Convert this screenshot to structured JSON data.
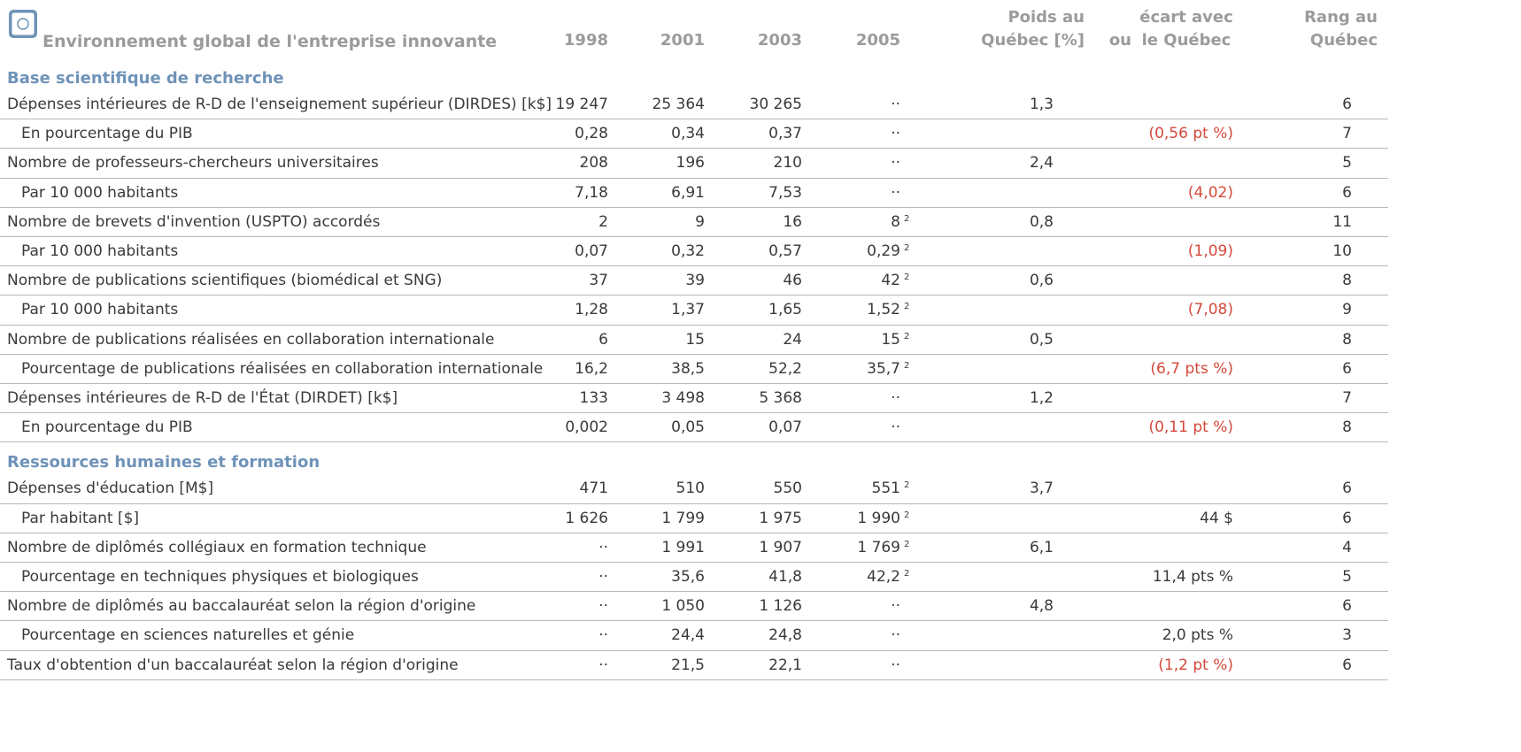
{
  "header": {
    "title": "Environnement global de l'entreprise innovante",
    "columns": [
      "1998",
      "2001",
      "2003",
      "2005",
      "Poids au\nQuébec [%]",
      "ou",
      "écart avec\nle Québec",
      "Rang au\nQuébec"
    ]
  },
  "colors": {
    "header": "#9b9b9b",
    "section": "#6f93b8",
    "text": "#3a3a3a",
    "negative": "#d4493a",
    "rule": "#b8b8b8"
  },
  "sections": [
    {
      "title": "Base scientifique de recherche",
      "rows": [
        {
          "label": "Dépenses intérieures de R-D de l'enseignement supérieur (DIRDES) [k$]",
          "indent": false,
          "values": [
            "19 247",
            "25 364",
            "30 265",
            "··"
          ],
          "poids": "1,3",
          "rang": "6"
        },
        {
          "label": "En pourcentage du PIB",
          "indent": true,
          "values": [
            "0,28",
            "0,34",
            "0,37",
            "··"
          ],
          "ecart": "(0,56 pt %)",
          "ecart_negative": true,
          "rang": "7"
        },
        {
          "label": "Nombre de professeurs-chercheurs universitaires",
          "indent": false,
          "values": [
            "208",
            "196",
            "210",
            "··"
          ],
          "poids": "2,4",
          "rang": "5"
        },
        {
          "label": "Par 10 000 habitants",
          "indent": true,
          "values": [
            "7,18",
            "6,91",
            "7,53",
            "··"
          ],
          "ecart": "(4,02)",
          "ecart_negative": true,
          "rang": "6"
        },
        {
          "label": "Nombre de brevets d'invention (USPTO) accordés",
          "indent": false,
          "values": [
            "2",
            "9",
            "16",
            "8"
          ],
          "note_2005": "2",
          "poids": "0,8",
          "rang": "11"
        },
        {
          "label": "Par 10 000 habitants",
          "indent": true,
          "values": [
            "0,07",
            "0,32",
            "0,57",
            "0,29"
          ],
          "note_2005": "2",
          "ecart": "(1,09)",
          "ecart_negative": true,
          "rang": "10"
        },
        {
          "label": "Nombre de publications scientifiques (biomédical et SNG)",
          "indent": false,
          "values": [
            "37",
            "39",
            "46",
            "42"
          ],
          "note_2005": "2",
          "poids": "0,6",
          "rang": "8"
        },
        {
          "label": "Par 10 000 habitants",
          "indent": true,
          "values": [
            "1,28",
            "1,37",
            "1,65",
            "1,52"
          ],
          "note_2005": "2",
          "ecart": "(7,08)",
          "ecart_negative": true,
          "rang": "9"
        },
        {
          "label": "Nombre de publications réalisées en collaboration internationale",
          "indent": false,
          "values": [
            "6",
            "15",
            "24",
            "15"
          ],
          "note_2005": "2",
          "poids": "0,5",
          "rang": "8"
        },
        {
          "label": "Pourcentage de publications réalisées en collaboration internationale",
          "indent": true,
          "values": [
            "16,2",
            "38,5",
            "52,2",
            "35,7"
          ],
          "note_2005": "2",
          "ecart": "(6,7 pts %)",
          "ecart_negative": true,
          "rang": "6"
        },
        {
          "label": "Dépenses intérieures de R-D de l'État (DIRDET) [k$]",
          "indent": false,
          "values": [
            "133",
            "3 498",
            "5 368",
            "··"
          ],
          "poids": "1,2",
          "rang": "7"
        },
        {
          "label": "En pourcentage du PIB",
          "indent": true,
          "values": [
            "0,002",
            "0,05",
            "0,07",
            "··"
          ],
          "ecart": "(0,11 pt %)",
          "ecart_negative": true,
          "rang": "8"
        }
      ]
    },
    {
      "title": "Ressources humaines et formation",
      "rows": [
        {
          "label": "Dépenses d'éducation [M$]",
          "indent": false,
          "values": [
            "471",
            "510",
            "550",
            "551"
          ],
          "note_2005": "2",
          "poids": "3,7",
          "rang": "6"
        },
        {
          "label": "Par habitant [$]",
          "indent": true,
          "values": [
            "1 626",
            "1 799",
            "1 975",
            "1 990"
          ],
          "note_2005": "2",
          "ecart": "44 $",
          "ecart_negative": false,
          "rang": "6"
        },
        {
          "label": "Nombre de diplômés collégiaux en formation technique",
          "indent": false,
          "values": [
            "··",
            "1 991",
            "1 907",
            "1 769"
          ],
          "note_2005": "2",
          "poids": "6,1",
          "rang": "4"
        },
        {
          "label": "Pourcentage en techniques physiques et biologiques",
          "indent": true,
          "values": [
            "··",
            "35,6",
            "41,8",
            "42,2"
          ],
          "note_2005": "2",
          "ecart": "11,4 pts %",
          "ecart_negative": false,
          "rang": "5"
        },
        {
          "label": "Nombre de diplômés au baccalauréat selon la région d'origine",
          "indent": false,
          "values": [
            "··",
            "1 050",
            "1 126",
            "··"
          ],
          "poids": "4,8",
          "rang": "6"
        },
        {
          "label": "Pourcentage en sciences naturelles et génie",
          "indent": true,
          "values": [
            "··",
            "24,4",
            "24,8",
            "··"
          ],
          "ecart": "2,0 pts %",
          "ecart_negative": false,
          "rang": "3"
        },
        {
          "label": "Taux d'obtention d'un baccalauréat selon la région d'origine",
          "indent": false,
          "values": [
            "··",
            "21,5",
            "22,1",
            "··"
          ],
          "ecart": "(1,2 pt %)",
          "ecart_negative": true,
          "rang": "6"
        }
      ]
    }
  ]
}
